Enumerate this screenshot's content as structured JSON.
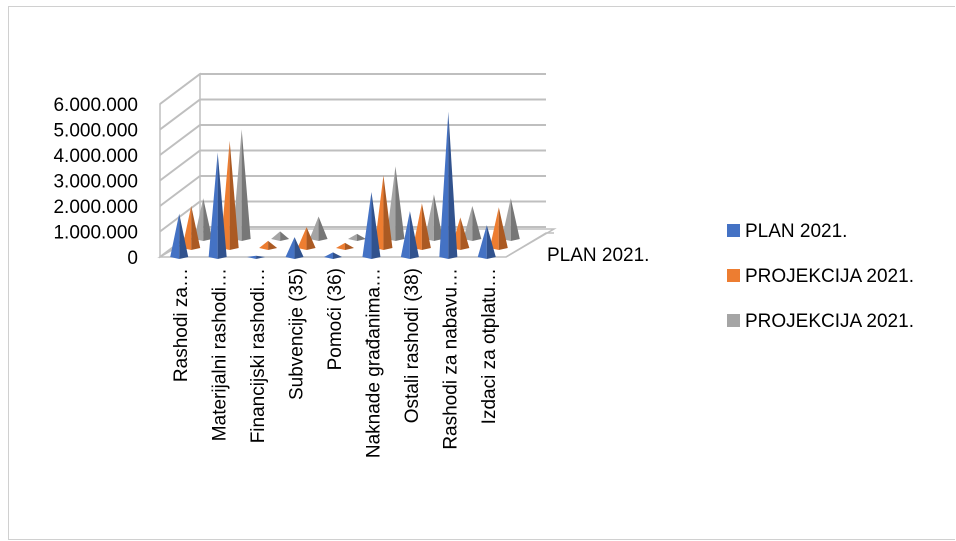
{
  "chart_data": {
    "type": "bar",
    "style": "3d-cone",
    "categories": [
      "Rashodi za…",
      "Materijalni rashodi…",
      "Financijski rashodi…",
      "Subvencije (35)",
      "Pomoći (36)",
      "Naknade građanima…",
      "Ostali rashodi (38)",
      "Rashodi za nabavu…",
      "Izdaci za otplatu…"
    ],
    "series": [
      {
        "name": "PLAN 2021.",
        "color": "#4472C4",
        "values": [
          1700000,
          4100000,
          50000,
          780000,
          180000,
          2550000,
          1800000,
          5700000,
          1250000
        ]
      },
      {
        "name": "PROJEKCIJA 2021.",
        "color": "#ED7D31",
        "values": [
          1650000,
          4200000,
          280000,
          820000,
          200000,
          2850000,
          1750000,
          1200000,
          1600000
        ]
      },
      {
        "name": "PROJEKCIJA 2021.",
        "color": "#A5A5A5",
        "values": [
          1600000,
          4300000,
          300000,
          880000,
          200000,
          2850000,
          1750000,
          1300000,
          1600000
        ]
      }
    ],
    "depth_axis_label": "PLAN 2021.",
    "y_ticks": [
      "0",
      "1.000.000",
      "2.000.000",
      "3.000.000",
      "4.000.000",
      "5.000.000",
      "6.000.000"
    ],
    "ylim": [
      0,
      6000000
    ],
    "grid": true,
    "legend_position": "right"
  }
}
